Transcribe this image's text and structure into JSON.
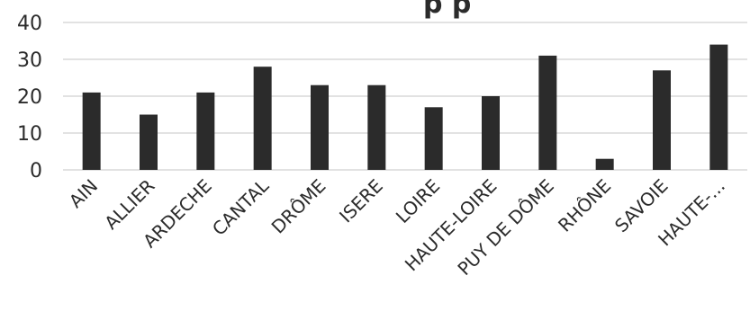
{
  "chart_data": {
    "type": "bar",
    "title_fragment": "p  p",
    "categories": [
      "AIN",
      "ALLIER",
      "ARDECHE",
      "CANTAL",
      "DRÔME",
      "ISERE",
      "LOIRE",
      "HAUTE-LOIRE",
      "PUY DE DÔME",
      "RHÔNE",
      "SAVOIE",
      "HAUTE-..."
    ],
    "values": [
      21,
      15,
      21,
      28,
      23,
      23,
      17,
      20,
      31,
      3,
      27,
      34
    ],
    "ylim": [
      0,
      40
    ],
    "yticks": [
      "0",
      "10",
      "20",
      "30",
      "40"
    ],
    "grid": true,
    "legend": "none",
    "colors": {
      "bar": "#2b2b2b",
      "grid": "#d9d9d9",
      "text": "#2b2b2b"
    }
  }
}
